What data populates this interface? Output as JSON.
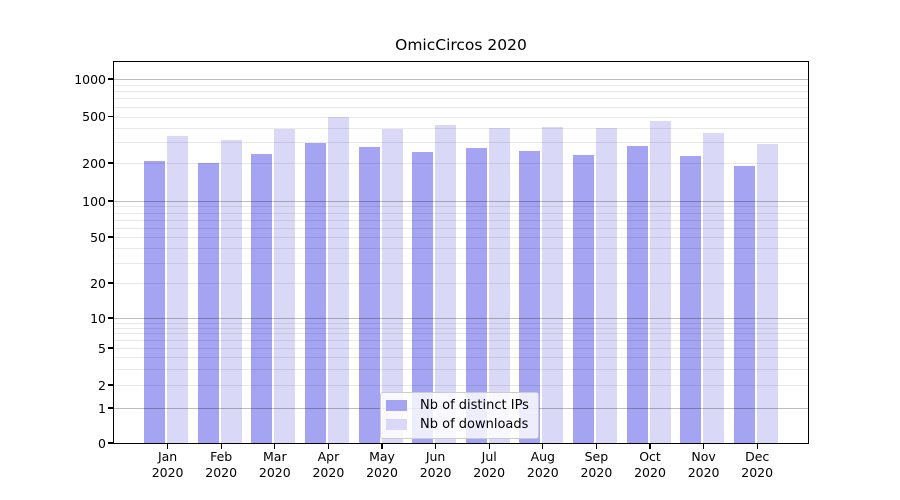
{
  "chart_data": {
    "type": "bar",
    "title": "OmicCircos 2020",
    "categories": [
      "Jan",
      "Feb",
      "Mar",
      "Apr",
      "May",
      "Jun",
      "Jul",
      "Aug",
      "Sep",
      "Oct",
      "Nov",
      "Dec"
    ],
    "year_label": "2020",
    "series": [
      {
        "name": "Nb of distinct IPs",
        "color": "#a4a4f2",
        "values": [
          207,
          199,
          238,
          295,
          273,
          247,
          269,
          255,
          232,
          280,
          230,
          188
        ]
      },
      {
        "name": "Nb of downloads",
        "color": "#d9d9f7",
        "values": [
          342,
          313,
          388,
          495,
          393,
          425,
          395,
          409,
          401,
          455,
          359,
          290
        ]
      }
    ],
    "y_scale": "symlog",
    "y_ticks": [
      0,
      1,
      2,
      5,
      10,
      20,
      50,
      100,
      200,
      500,
      1000
    ],
    "y_major_gridlines": [
      1,
      10,
      100,
      1000
    ],
    "y_minor_gridlines": [
      3,
      4,
      6,
      7,
      8,
      9,
      30,
      40,
      60,
      70,
      80,
      90,
      300,
      400,
      600,
      700,
      800,
      900
    ],
    "ylim": [
      0,
      1400
    ],
    "xlabel": "",
    "ylabel": "",
    "grid": "both",
    "legend_position": "lower center"
  },
  "colors": {
    "background": "#ffffff",
    "spine": "#000000",
    "grid_major": "#bcbcbc",
    "grid_minor": "#e8e8e8",
    "legend_border": "#cccccc"
  }
}
